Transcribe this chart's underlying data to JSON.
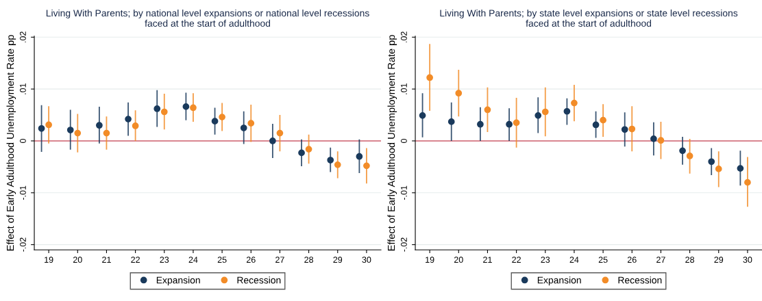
{
  "chart_data": [
    {
      "type": "scatter",
      "title": "Living With Parents; by national level expansions or national level recessions\nfaced at the start of adulthood",
      "ylabel": "Effect of Early Adulthood Unemployment Rate pp",
      "categories": [
        "19",
        "20",
        "21",
        "22",
        "23",
        "24",
        "25",
        "26",
        "27",
        "28",
        "29",
        "30"
      ],
      "ylim": [
        -0.021,
        0.0202
      ],
      "yticks": [
        {
          "value": -0.02,
          "label": "-.02"
        },
        {
          "value": -0.01,
          "label": "-.01"
        },
        0,
        {
          "value": 0.01,
          "label": ".01"
        },
        {
          "value": 0.02,
          "label": ".02"
        }
      ],
      "grid": "y",
      "legend": "bottom",
      "marker": "circle",
      "ref_lines": [
        {
          "axis": "y",
          "value": 0,
          "color": "#d0606e"
        }
      ],
      "series": [
        {
          "name": "Expansion",
          "color": "#1a3a5c",
          "values": [
            0.0024,
            0.0021,
            0.003,
            0.0042,
            0.0062,
            0.0066,
            0.0038,
            0.0025,
            0.0,
            -0.0023,
            -0.0037,
            -0.003
          ],
          "errors": [
            [
              -0.0021,
              0.0069
            ],
            [
              -0.0017,
              0.006
            ],
            [
              -0.0005,
              0.0066
            ],
            [
              0.001,
              0.0074
            ],
            [
              0.0027,
              0.0098
            ],
            [
              0.004,
              0.0093
            ],
            [
              0.0012,
              0.0064
            ],
            [
              -0.0006,
              0.0057
            ],
            [
              -0.0033,
              0.0033
            ],
            [
              -0.0049,
              0.0003
            ],
            [
              -0.006,
              -0.0013
            ],
            [
              -0.0062,
              0.0003
            ]
          ]
        },
        {
          "name": "Recession",
          "color": "#f28c28",
          "values": [
            0.0031,
            0.0015,
            0.0015,
            0.0029,
            0.0056,
            0.0064,
            0.0046,
            0.0034,
            0.0015,
            -0.0016,
            -0.0046,
            -0.0048
          ],
          "errors": [
            [
              -0.0005,
              0.0067
            ],
            [
              -0.0022,
              0.0052
            ],
            [
              -0.0017,
              0.0047
            ],
            [
              0.0,
              0.0059
            ],
            [
              0.0022,
              0.0091
            ],
            [
              0.0037,
              0.0092
            ],
            [
              0.0019,
              0.0073
            ],
            [
              -0.0002,
              0.007
            ],
            [
              -0.002,
              0.005
            ],
            [
              -0.0044,
              0.0012
            ],
            [
              -0.0072,
              -0.002
            ],
            [
              -0.0082,
              -0.0014
            ]
          ]
        }
      ]
    },
    {
      "type": "scatter",
      "title": "Living With Parents; by state level expansions or state level recessions\nfaced at the start of adulthood",
      "ylabel": "Effect of Early Adulthood Unemployment Rate pp",
      "categories": [
        "19",
        "20",
        "21",
        "22",
        "23",
        "24",
        "25",
        "26",
        "27",
        "28",
        "29",
        "30"
      ],
      "ylim": [
        -0.021,
        0.0202
      ],
      "yticks": [
        {
          "value": -0.02,
          "label": "-.02"
        },
        {
          "value": -0.01,
          "label": "-.01"
        },
        0,
        {
          "value": 0.01,
          "label": ".01"
        },
        {
          "value": 0.02,
          "label": ".02"
        }
      ],
      "grid": "y",
      "legend": "bottom",
      "marker": "circle",
      "ref_lines": [
        {
          "axis": "y",
          "value": 0,
          "color": "#d0606e"
        }
      ],
      "series": [
        {
          "name": "Expansion",
          "color": "#1a3a5c",
          "values": [
            0.0049,
            0.0037,
            0.0032,
            0.0032,
            0.0049,
            0.0057,
            0.0031,
            0.0022,
            0.0004,
            -0.0019,
            -0.004,
            -0.0053
          ],
          "errors": [
            [
              0.0007,
              0.0092
            ],
            [
              0.0,
              0.0074
            ],
            [
              0.0,
              0.0065
            ],
            [
              0.0,
              0.0063
            ],
            [
              0.0015,
              0.0084
            ],
            [
              0.0031,
              0.0082
            ],
            [
              0.0006,
              0.0057
            ],
            [
              -0.0011,
              0.0055
            ],
            [
              -0.0028,
              0.0036
            ],
            [
              -0.0046,
              0.0008
            ],
            [
              -0.0066,
              -0.0014
            ],
            [
              -0.0086,
              -0.0019
            ]
          ]
        },
        {
          "name": "Recession",
          "color": "#f28c28",
          "values": [
            0.0122,
            0.0092,
            0.006,
            0.0035,
            0.0056,
            0.0073,
            0.004,
            0.0023,
            0.0001,
            -0.0029,
            -0.0054,
            -0.008
          ],
          "errors": [
            [
              0.0058,
              0.0187
            ],
            [
              0.0047,
              0.0137
            ],
            [
              0.0017,
              0.0103
            ],
            [
              -0.0013,
              0.0083
            ],
            [
              0.0009,
              0.0103
            ],
            [
              0.0038,
              0.0108
            ],
            [
              0.0008,
              0.0071
            ],
            [
              -0.002,
              0.0067
            ],
            [
              -0.0035,
              0.0037
            ],
            [
              -0.0063,
              0.0004
            ],
            [
              -0.0089,
              -0.002
            ],
            [
              -0.0127,
              -0.0031
            ]
          ]
        }
      ]
    }
  ]
}
